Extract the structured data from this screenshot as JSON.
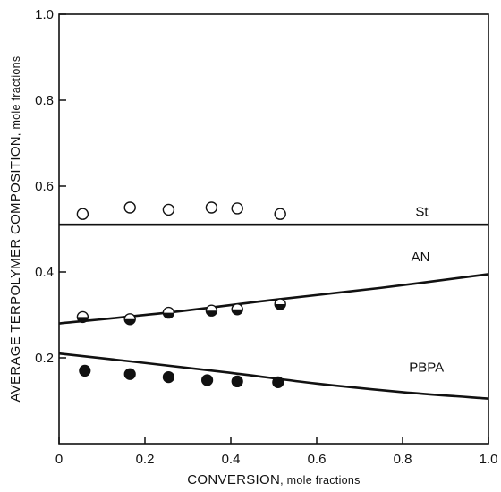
{
  "chart_data": {
    "type": "scatter",
    "xlabel": "CONVERSION",
    "xlabel_unit": ", mole fractions",
    "ylabel": "AVERAGE TERPOLYMER COMPOSITION",
    "ylabel_unit": ", mole fractions",
    "xlim": [
      0,
      1.0
    ],
    "ylim": [
      0,
      1.0
    ],
    "x_ticks": [
      {
        "value": 0,
        "label": "0"
      },
      {
        "value": 0.2,
        "label": "0.2"
      },
      {
        "value": 0.4,
        "label": "0.4"
      },
      {
        "value": 0.6,
        "label": "0.6"
      },
      {
        "value": 0.8,
        "label": "0.8"
      },
      {
        "value": 1.0,
        "label": "1.0"
      }
    ],
    "y_ticks": [
      {
        "value": 0.2,
        "label": "0.2"
      },
      {
        "value": 0.4,
        "label": "0.4"
      },
      {
        "value": 0.6,
        "label": "0.6"
      },
      {
        "value": 0.8,
        "label": "0.8"
      },
      {
        "value": 1.0,
        "label": "1.0"
      }
    ],
    "grid": false,
    "series": [
      {
        "name": "St",
        "marker": "open-circle",
        "points": [
          [
            0.055,
            0.535
          ],
          [
            0.165,
            0.55
          ],
          [
            0.255,
            0.545
          ],
          [
            0.355,
            0.55
          ],
          [
            0.415,
            0.548
          ],
          [
            0.515,
            0.535
          ]
        ],
        "fit_line": [
          [
            0,
            0.51
          ],
          [
            1.0,
            0.51
          ]
        ]
      },
      {
        "name": "AN",
        "marker": "half-filled-circle",
        "points": [
          [
            0.055,
            0.295
          ],
          [
            0.165,
            0.29
          ],
          [
            0.255,
            0.305
          ],
          [
            0.355,
            0.31
          ],
          [
            0.415,
            0.313
          ],
          [
            0.515,
            0.325
          ]
        ],
        "fit_line": [
          [
            0,
            0.28
          ],
          [
            0.25,
            0.305
          ],
          [
            0.5,
            0.335
          ],
          [
            0.75,
            0.363
          ],
          [
            1.0,
            0.395
          ]
        ]
      },
      {
        "name": "PBPA",
        "marker": "filled-circle",
        "points": [
          [
            0.06,
            0.17
          ],
          [
            0.165,
            0.162
          ],
          [
            0.255,
            0.155
          ],
          [
            0.345,
            0.148
          ],
          [
            0.415,
            0.145
          ],
          [
            0.51,
            0.143
          ]
        ],
        "fit_line": [
          [
            0,
            0.21
          ],
          [
            0.2,
            0.188
          ],
          [
            0.4,
            0.165
          ],
          [
            0.6,
            0.14
          ],
          [
            0.8,
            0.12
          ],
          [
            1.0,
            0.105
          ]
        ]
      }
    ]
  }
}
